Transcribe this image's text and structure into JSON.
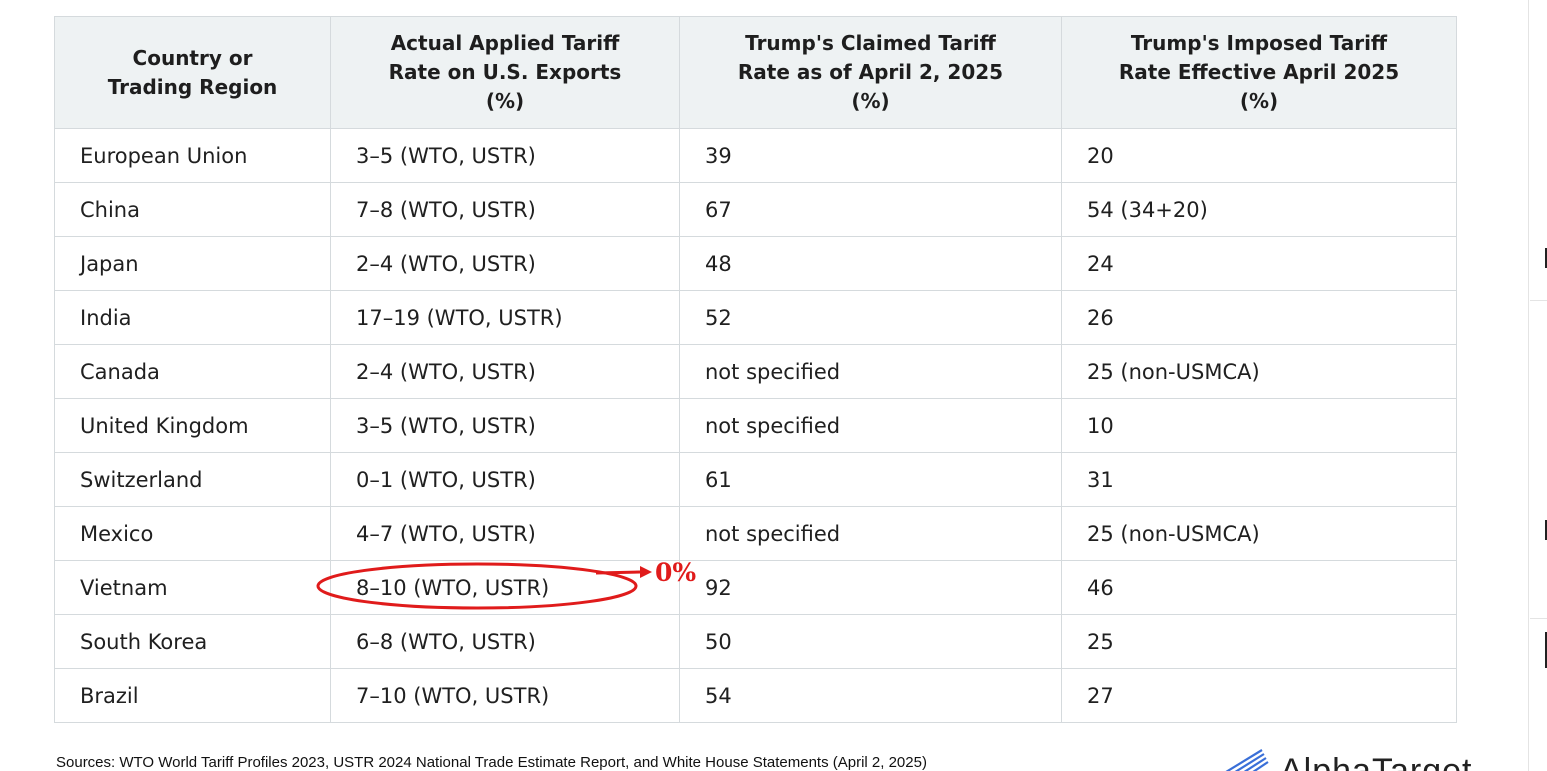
{
  "table": {
    "headers": [
      [
        "Country or",
        "Trading Region"
      ],
      [
        "Actual Applied Tariff",
        "Rate on U.S. Exports",
        "(%)"
      ],
      [
        "Trump's Claimed Tariff",
        "Rate as of April 2, 2025",
        "(%)"
      ],
      [
        "Trump's Imposed Tariff",
        "Rate Effective April 2025",
        "(%)"
      ]
    ],
    "rows": [
      [
        "European Union",
        "3–5 (WTO, USTR)",
        "39",
        "20"
      ],
      [
        "China",
        "7–8 (WTO, USTR)",
        "67",
        "54 (34+20)"
      ],
      [
        "Japan",
        "2–4 (WTO, USTR)",
        "48",
        "24"
      ],
      [
        "India",
        "17–19 (WTO, USTR)",
        "52",
        "26"
      ],
      [
        "Canada",
        "2–4 (WTO, USTR)",
        "not specified",
        "25 (non-USMCA)"
      ],
      [
        "United Kingdom",
        "3–5 (WTO, USTR)",
        "not specified",
        "10"
      ],
      [
        "Switzerland",
        "0–1 (WTO, USTR)",
        "61",
        "31"
      ],
      [
        "Mexico",
        "4–7 (WTO, USTR)",
        "not specified",
        "25 (non-USMCA)"
      ],
      [
        "Vietnam",
        "8–10 (WTO, USTR)",
        "92",
        "46"
      ],
      [
        "South Korea",
        "6–8 (WTO, USTR)",
        "50",
        "25"
      ],
      [
        "Brazil",
        "7–10 (WTO, USTR)",
        "54",
        "27"
      ]
    ]
  },
  "annotation": {
    "label": "0%",
    "color": "#e01b1b"
  },
  "footer": {
    "sources": "Sources: WTO World Tariff Profiles 2023, USTR 2024 National Trade Estimate Report, and White House Statements (April 2, 2025)",
    "logo_text": "AlphaTarget",
    "logo_icon": "stripes-wing-icon"
  }
}
